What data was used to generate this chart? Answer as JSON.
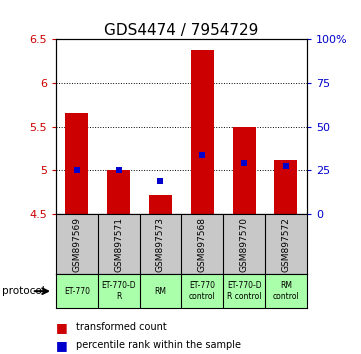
{
  "title": "GDS4474 / 7954729",
  "samples": [
    "GSM897569",
    "GSM897571",
    "GSM897573",
    "GSM897568",
    "GSM897570",
    "GSM897572"
  ],
  "protocols": [
    "ET-770",
    "ET-770-D\nR",
    "RM",
    "ET-770\ncontrol",
    "ET-770-D\nR control",
    "RM\ncontrol"
  ],
  "bar_bottoms": [
    4.5,
    4.5,
    4.5,
    4.5,
    4.5,
    4.5
  ],
  "bar_tops": [
    5.65,
    5.0,
    4.72,
    6.37,
    5.5,
    5.12
  ],
  "percentile_values": [
    5.0,
    5.0,
    4.88,
    5.18,
    5.08,
    5.05
  ],
  "ylim_left": [
    4.5,
    6.5
  ],
  "ylim_right": [
    0,
    100
  ],
  "yticks_left": [
    4.5,
    5.0,
    5.5,
    6.0,
    6.5
  ],
  "ytick_labels_left": [
    "4.5",
    "5",
    "5.5",
    "6",
    "6.5"
  ],
  "yticks_right": [
    0,
    25,
    50,
    75,
    100
  ],
  "ytick_labels_right": [
    "0",
    "25",
    "50",
    "75",
    "100%"
  ],
  "bar_color": "#cc0000",
  "percentile_color": "#0000cc",
  "bg_samples": "#c8c8c8",
  "bg_protocol_light": "#aaffaa",
  "bar_width": 0.55,
  "legend_red_label": "transformed count",
  "legend_blue_label": "percentile rank within the sample",
  "protocol_label": "protocol",
  "title_fontsize": 11,
  "tick_fontsize": 8,
  "grid_yticks": [
    5.0,
    5.5,
    6.0
  ]
}
